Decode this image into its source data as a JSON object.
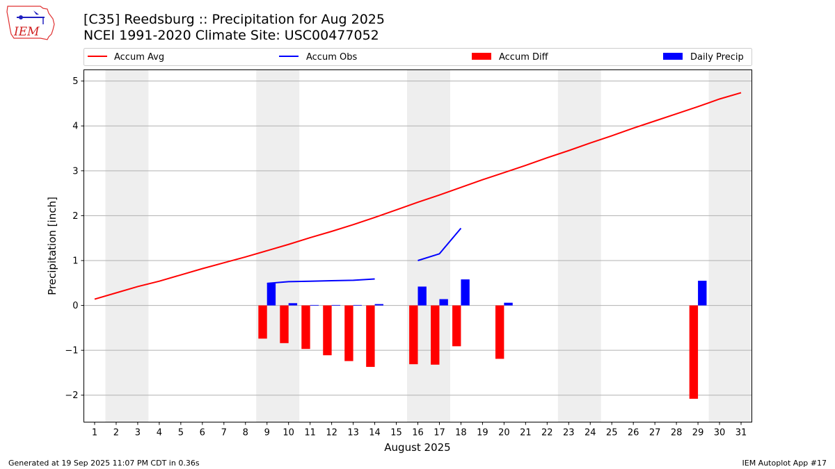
{
  "header": {
    "title": "[C35] Reedsburg :: Precipitation for Aug 2025",
    "subtitle": "NCEI 1991-2020 Climate Site: USC00477052",
    "logo_text": "IEM"
  },
  "footer": {
    "generated": "Generated at 19 Sep 2025 11:07 PM CDT in 0.36s",
    "app": "IEM Autoplot App #17"
  },
  "colors": {
    "avg": "#ff0000",
    "obs": "#0000ff",
    "diff": "#ff0000",
    "daily": "#0000ff",
    "weekend_band": "#eeeeee",
    "grid": "#b0b0b0"
  },
  "chart_data": {
    "type": "bar",
    "title": "[C35] Reedsburg :: Precipitation for Aug 2025",
    "xlabel": "August 2025",
    "ylabel": "Precipitation [inch]",
    "x": [
      1,
      2,
      3,
      4,
      5,
      6,
      7,
      8,
      9,
      10,
      11,
      12,
      13,
      14,
      15,
      16,
      17,
      18,
      19,
      20,
      21,
      22,
      23,
      24,
      25,
      26,
      27,
      28,
      29,
      30,
      31
    ],
    "xlim": [
      0.5,
      31.5
    ],
    "ylim": [
      -2.6,
      5.25
    ],
    "yticks": [
      -2,
      -1,
      0,
      1,
      2,
      3,
      4,
      5
    ],
    "ytick_labels": [
      "−2",
      "−1",
      "0",
      "1",
      "2",
      "3",
      "4",
      "5"
    ],
    "grid": "y",
    "legend_placement": "top",
    "weekend_bands": [
      [
        1.5,
        3.5
      ],
      [
        8.5,
        10.5
      ],
      [
        15.5,
        17.5
      ],
      [
        22.5,
        24.5
      ],
      [
        29.5,
        31.5
      ]
    ],
    "series": [
      {
        "name": "Accum Avg",
        "kind": "line",
        "x": [
          1,
          2,
          3,
          4,
          5,
          6,
          7,
          8,
          9,
          10,
          11,
          12,
          13,
          14,
          15,
          16,
          17,
          18,
          19,
          20,
          21,
          22,
          23,
          24,
          25,
          26,
          27,
          28,
          29,
          30,
          31
        ],
        "values": [
          0.14,
          0.28,
          0.42,
          0.54,
          0.68,
          0.82,
          0.95,
          1.08,
          1.22,
          1.36,
          1.51,
          1.65,
          1.8,
          1.96,
          2.13,
          2.3,
          2.46,
          2.63,
          2.8,
          2.96,
          3.12,
          3.29,
          3.45,
          3.62,
          3.78,
          3.95,
          4.11,
          4.27,
          4.43,
          4.6,
          4.74
        ]
      },
      {
        "name": "Accum Obs",
        "kind": "line",
        "segments": [
          {
            "x": [
              9,
              10,
              11,
              12,
              13,
              14
            ],
            "values": [
              0.49,
              0.53,
              0.54,
              0.55,
              0.56,
              0.59
            ]
          },
          {
            "x": [
              16,
              17,
              18
            ],
            "values": [
              1.0,
              1.15,
              1.72
            ]
          }
        ]
      },
      {
        "name": "Accum Diff",
        "kind": "bar",
        "x": [
          9,
          10,
          11,
          12,
          13,
          14,
          16,
          17,
          18,
          20,
          29
        ],
        "values": [
          -0.74,
          -0.84,
          -0.97,
          -1.11,
          -1.24,
          -1.37,
          -1.31,
          -1.32,
          -0.91,
          -1.19,
          -2.08
        ]
      },
      {
        "name": "Daily Precip",
        "kind": "bar",
        "x": [
          9,
          10,
          11,
          12,
          13,
          14,
          16,
          17,
          18,
          20,
          29
        ],
        "values": [
          0.49,
          0.05,
          0.01,
          0.01,
          0.01,
          0.03,
          0.42,
          0.14,
          0.58,
          0.06,
          0.55
        ]
      }
    ]
  }
}
